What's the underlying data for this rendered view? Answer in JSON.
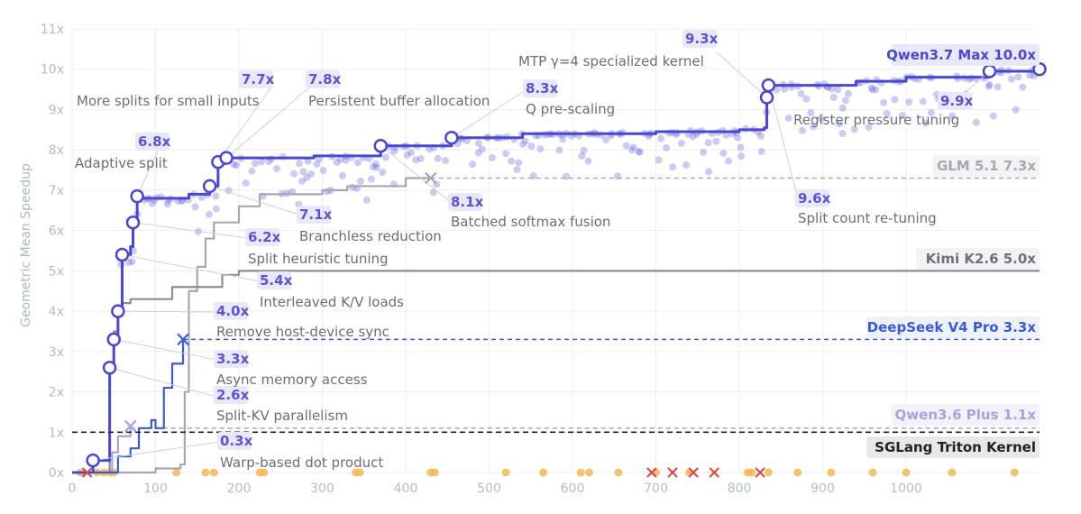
{
  "chart_data": {
    "type": "line",
    "ylabel": "Geometric Mean Speedup",
    "xlabel": "",
    "xlim": [
      0,
      1160
    ],
    "ylim": [
      0,
      11
    ],
    "x_ticks": [
      0,
      100,
      200,
      300,
      400,
      500,
      600,
      700,
      800,
      900,
      1000
    ],
    "y_ticks": [
      {
        "value": 0,
        "label": "0x"
      },
      {
        "value": 1,
        "label": "1x"
      },
      {
        "value": 2,
        "label": "2x"
      },
      {
        "value": 3,
        "label": "3x"
      },
      {
        "value": 4,
        "label": "4x"
      },
      {
        "value": 5,
        "label": "5x"
      },
      {
        "value": 6,
        "label": "6x"
      },
      {
        "value": 7,
        "label": "7x"
      },
      {
        "value": 8,
        "label": "8x"
      },
      {
        "value": 9,
        "label": "9x"
      },
      {
        "value": 10,
        "label": "10x"
      },
      {
        "value": 11,
        "label": "11x"
      }
    ],
    "grid": true,
    "series": [
      {
        "name": "Qwen3.7 Max",
        "final_label": "Qwen3.7 Max 10.0x",
        "color": "#4a47d2",
        "points": [
          [
            0,
            0
          ],
          [
            15,
            0
          ],
          [
            25,
            0.3
          ],
          [
            42,
            0.3
          ],
          [
            45,
            2.6
          ],
          [
            50,
            3.3
          ],
          [
            55,
            4.0
          ],
          [
            60,
            5.4
          ],
          [
            70,
            5.6
          ],
          [
            73,
            6.2
          ],
          [
            78,
            6.8
          ],
          [
            140,
            6.9
          ],
          [
            165,
            7.1
          ],
          [
            175,
            7.7
          ],
          [
            185,
            7.8
          ],
          [
            290,
            7.85
          ],
          [
            370,
            8.1
          ],
          [
            455,
            8.3
          ],
          [
            540,
            8.4
          ],
          [
            700,
            8.45
          ],
          [
            800,
            8.5
          ],
          [
            830,
            8.55
          ],
          [
            833,
            9.3
          ],
          [
            835,
            9.6
          ],
          [
            940,
            9.7
          ],
          [
            1000,
            9.8
          ],
          [
            1100,
            9.95
          ],
          [
            1160,
            10.0
          ]
        ],
        "end_marker": "circle"
      },
      {
        "name": "DeepSeek V4 Pro",
        "final_label": "DeepSeek V4 Pro 3.3x",
        "color": "#3a5bd6",
        "points": [
          [
            0,
            0
          ],
          [
            40,
            0
          ],
          [
            55,
            0.4
          ],
          [
            70,
            0.6
          ],
          [
            80,
            1.1
          ],
          [
            95,
            1.3
          ],
          [
            100,
            1.1
          ],
          [
            110,
            2.1
          ],
          [
            120,
            2.7
          ],
          [
            133,
            3.3
          ]
        ],
        "end_marker": "x",
        "dashed_to": 1160,
        "dashed_value": 3.3
      },
      {
        "name": "GLM 5.1",
        "final_label": "GLM 5.1 7.3x",
        "color": "#a4a8b0",
        "points": [
          [
            0,
            0
          ],
          [
            40,
            0
          ],
          [
            100,
            0.1
          ],
          [
            130,
            0.2
          ],
          [
            135,
            2
          ],
          [
            140,
            4.5
          ],
          [
            150,
            5.1
          ],
          [
            160,
            5.8
          ],
          [
            170,
            6.2
          ],
          [
            200,
            6.6
          ],
          [
            225,
            6.9
          ],
          [
            300,
            7.0
          ],
          [
            330,
            7.1
          ],
          [
            400,
            7.3
          ],
          [
            430,
            7.3
          ]
        ],
        "end_marker": "x",
        "dashed_to": 1160,
        "dashed_value": 7.3
      },
      {
        "name": "Kimi K2.6",
        "final_label": "Kimi K2.6 5.0x",
        "color": "#8a8f96",
        "points": [
          [
            0,
            0
          ],
          [
            40,
            0
          ],
          [
            45,
            2.5
          ],
          [
            50,
            3.5
          ],
          [
            55,
            3.9
          ],
          [
            60,
            4.2
          ],
          [
            70,
            4.3
          ],
          [
            90,
            4.3
          ],
          [
            120,
            4.6
          ],
          [
            180,
            4.9
          ],
          [
            200,
            5.0
          ],
          [
            1160,
            5.0
          ]
        ]
      },
      {
        "name": "Qwen3.6 Plus",
        "final_label": "Qwen3.6 Plus 1.1x",
        "color": "#a8a2e0",
        "points": [
          [
            0,
            0
          ],
          [
            40,
            0
          ],
          [
            48,
            0.5
          ],
          [
            55,
            0.9
          ],
          [
            70,
            1.15
          ]
        ],
        "end_marker": "x",
        "dashed_to": 1160,
        "dashed_value": 1.1
      },
      {
        "name": "SGLang Triton Kernel",
        "final_label": "SGLang Triton Kernel",
        "color": "#222222",
        "baseline": 1.0
      }
    ],
    "annotations": [
      {
        "value": "0.3x",
        "text": "Warp-based dot product",
        "x": 25,
        "y": 0.3
      },
      {
        "value": "2.6x",
        "text": "Split-KV parallelism",
        "x": 45,
        "y": 2.6
      },
      {
        "value": "3.3x",
        "text": "Async memory access",
        "x": 50,
        "y": 3.3
      },
      {
        "value": "4.0x",
        "text": "Remove host-device sync",
        "x": 55,
        "y": 4.0
      },
      {
        "value": "5.4x",
        "text": "Interleaved K/V loads",
        "x": 60,
        "y": 5.4
      },
      {
        "value": "6.2x",
        "text": "Split heuristic tuning",
        "x": 73,
        "y": 6.2
      },
      {
        "value": "6.8x",
        "text": "Adaptive split",
        "x": 78,
        "y": 6.85
      },
      {
        "value": "7.1x",
        "text": "Branchless reduction",
        "x": 165,
        "y": 7.1
      },
      {
        "value": "7.7x",
        "text": "More splits for small inputs",
        "x": 175,
        "y": 7.7
      },
      {
        "value": "7.8x",
        "text": "Persistent buffer allocation",
        "x": 185,
        "y": 7.8
      },
      {
        "value": "8.1x",
        "text": "Batched softmax fusion",
        "x": 370,
        "y": 8.1
      },
      {
        "value": "8.3x",
        "text": "Q pre-scaling",
        "x": 455,
        "y": 8.3
      },
      {
        "value": "9.3x",
        "text": "MTP γ=4 specialized kernel",
        "x": 833,
        "y": 9.3
      },
      {
        "value": "9.6x",
        "text": "Split count re-tuning",
        "x": 835,
        "y": 9.6
      },
      {
        "value": "9.9x",
        "text": "Register pressure tuning",
        "x": 1100,
        "y": 9.95
      }
    ],
    "failed_attempts_x": [
      18,
      695,
      720,
      745,
      770,
      825
    ],
    "baseline_attempts_x": [
      10,
      30,
      38,
      45,
      50,
      125,
      160,
      170,
      225,
      230,
      340,
      345,
      430,
      435,
      520,
      565,
      610,
      620,
      655,
      700,
      740,
      810,
      815,
      835,
      870,
      910,
      960,
      1000,
      1055,
      1130
    ]
  }
}
